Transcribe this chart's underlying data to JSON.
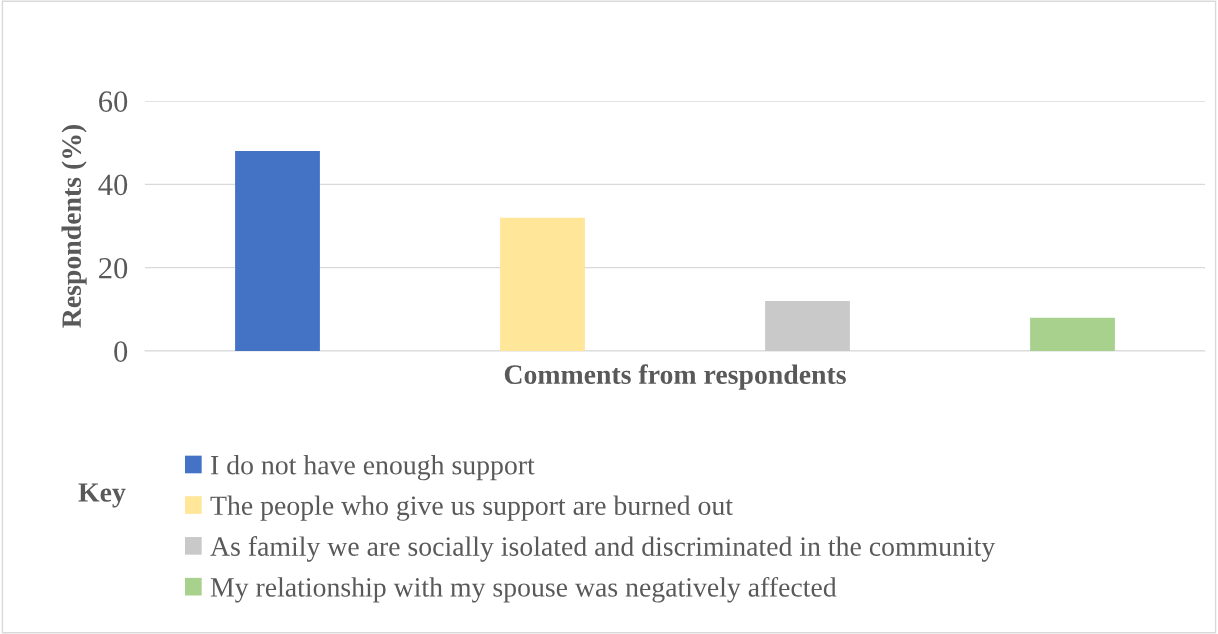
{
  "chart_data": {
    "type": "bar",
    "categories": [
      null
    ],
    "series": [
      {
        "name": "I do not have enough support",
        "color": "#4472c4",
        "values": [
          48
        ]
      },
      {
        "name": "The people who give us support are burned out",
        "color": "#ffe699",
        "values": [
          32
        ]
      },
      {
        "name": "As family we are socially isolated and discriminated in the community",
        "color": "#c9c9c9",
        "values": [
          12
        ]
      },
      {
        "name": "My relationship with my spouse was negatively affected",
        "color": "#a9d18e",
        "values": [
          8
        ]
      }
    ],
    "xlabel": "Comments from respondents",
    "ylabel": "Respondents (%)",
    "legend_title": "Key",
    "ylim": [
      0,
      60
    ],
    "yticks": [
      0,
      20,
      40,
      60
    ],
    "grid": "y",
    "legend": "bottom"
  }
}
